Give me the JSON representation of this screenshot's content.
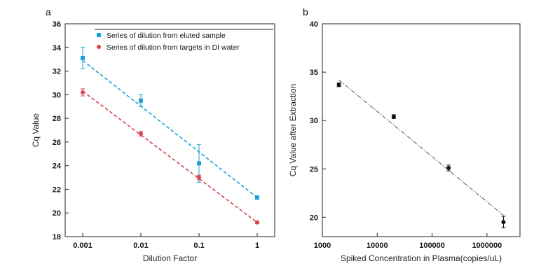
{
  "chart_data": [
    {
      "panel_label": "a",
      "type": "scatter",
      "xscale": "log",
      "xlabel": "Dilution Factor",
      "ylabel": "Cq Value",
      "xlim": [
        0.0005,
        2
      ],
      "ylim": [
        18,
        36
      ],
      "xticks": [
        0.001,
        0.01,
        0.1,
        1
      ],
      "xtick_labels": [
        "0.001",
        "0.01",
        "0.1",
        "1"
      ],
      "yticks": [
        18,
        20,
        22,
        24,
        26,
        28,
        30,
        32,
        34,
        36
      ],
      "grid": false,
      "legend": "top",
      "series": [
        {
          "name": "Series of dilution from eluted sample",
          "color": "#1aa3d9",
          "marker": "square",
          "x": [
            0.001,
            0.01,
            0.1,
            1
          ],
          "y": [
            33.1,
            29.5,
            24.2,
            21.3
          ],
          "err": [
            0.9,
            0.5,
            1.6,
            0.15
          ],
          "fit": [
            [
              0.001,
              32.9
            ],
            [
              1,
              21.3
            ]
          ]
        },
        {
          "name": "Series of dilution from targets in DI water",
          "color": "#d9434f",
          "marker": "circle",
          "x": [
            0.001,
            0.01,
            0.1,
            1
          ],
          "y": [
            30.2,
            26.7,
            23.0,
            19.2
          ],
          "err": [
            0.3,
            0.2,
            0.2,
            0.1
          ],
          "fit": [
            [
              0.001,
              30.3
            ],
            [
              1,
              19.2
            ]
          ]
        }
      ]
    },
    {
      "panel_label": "b",
      "type": "scatter",
      "xscale": "log",
      "xlabel": "Spiked Concentration in Plasma(copies/uL)",
      "ylabel": "Cq Value after Extraction",
      "xlim": [
        1000,
        4000000
      ],
      "ylim": [
        18,
        40
      ],
      "xticks": [
        1000,
        10000,
        100000,
        1000000
      ],
      "xtick_labels": [
        "1000",
        "10000",
        "100000",
        "1000000"
      ],
      "yticks": [
        20,
        25,
        30,
        35,
        40
      ],
      "grid": false,
      "series": [
        {
          "color": "#111111",
          "marker": "circle",
          "x": [
            2000,
            20000,
            200000,
            2000000
          ],
          "y": [
            33.7,
            30.4,
            25.1,
            19.5
          ],
          "err": [
            0.2,
            0.2,
            0.3,
            0.6
          ],
          "fit": [
            [
              2000,
              34.2
            ],
            [
              2000000,
              20.2
            ]
          ]
        }
      ]
    }
  ]
}
